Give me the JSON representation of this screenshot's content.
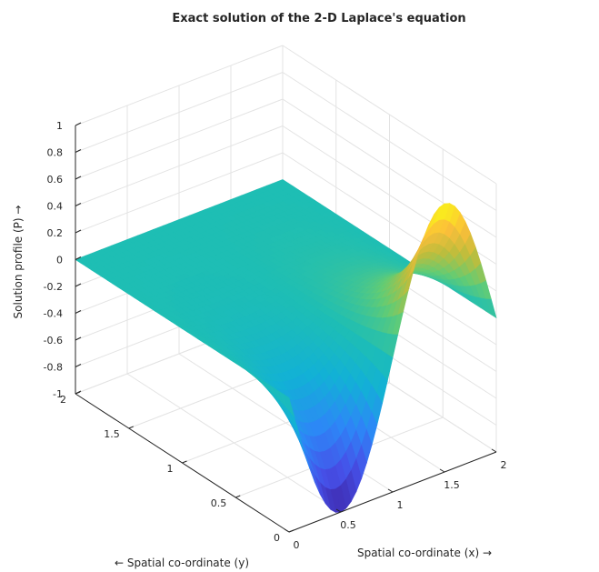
{
  "chart_data": {
    "type": "surface",
    "title": "Exact solution of the 2-D Laplace's equation",
    "xlabel": "Spatial co-ordinate (x) →",
    "ylabel": "← Spatial co-ordinate (y)",
    "zlabel": "Solution profile (P) →",
    "xlim": [
      0,
      2
    ],
    "ylim": [
      0,
      2
    ],
    "zlim": [
      -1,
      1
    ],
    "x_ticks": [
      "0",
      "0.5",
      "1",
      "1.5",
      "2"
    ],
    "y_ticks": [
      "0",
      "0.5",
      "1",
      "1.5",
      "2"
    ],
    "z_ticks": [
      "-1",
      "-0.8",
      "-0.6",
      "-0.4",
      "-0.2",
      "0",
      "0.2",
      "0.4",
      "0.6",
      "0.8",
      "1"
    ],
    "grid": true,
    "colormap": "parula",
    "boundary_profile": {
      "edge": "y = 0",
      "x": [
        0,
        0.25,
        0.5,
        0.75,
        1,
        1.25,
        1.5,
        1.75,
        2
      ],
      "P": [
        0,
        -0.71,
        -1,
        -0.71,
        0,
        0.71,
        1,
        0.71,
        0
      ]
    },
    "other_edges_P": 0
  }
}
